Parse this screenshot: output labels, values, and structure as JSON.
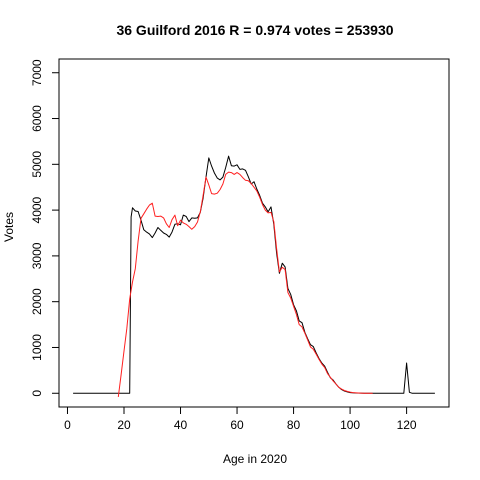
{
  "chart_data": {
    "type": "line",
    "title": "36 Guilford 2016 R = 0.974 votes = 253930",
    "xlabel": "Age in 2020",
    "ylabel": "Votes",
    "xlim": [
      -3,
      135
    ],
    "ylim": [
      -300,
      7300
    ],
    "x_ticks": [
      0,
      20,
      40,
      60,
      80,
      100,
      120
    ],
    "y_ticks": [
      0,
      1000,
      2000,
      3000,
      4000,
      5000,
      6000,
      7000
    ],
    "grid": false,
    "series": [
      {
        "color": "#000000",
        "points": [
          [
            2,
            0
          ],
          [
            10,
            0
          ],
          [
            18,
            0
          ],
          [
            20,
            0
          ],
          [
            22,
            0
          ],
          [
            22.5,
            3850
          ],
          [
            23,
            4050
          ],
          [
            24,
            3980
          ],
          [
            25,
            3970
          ],
          [
            26,
            3780
          ],
          [
            27,
            3570
          ],
          [
            28,
            3520
          ],
          [
            29,
            3480
          ],
          [
            30,
            3400
          ],
          [
            31,
            3500
          ],
          [
            32,
            3620
          ],
          [
            33,
            3560
          ],
          [
            34,
            3500
          ],
          [
            35,
            3470
          ],
          [
            36,
            3410
          ],
          [
            37,
            3520
          ],
          [
            38,
            3690
          ],
          [
            39,
            3700
          ],
          [
            40,
            3680
          ],
          [
            41,
            3890
          ],
          [
            42,
            3860
          ],
          [
            43,
            3750
          ],
          [
            44,
            3830
          ],
          [
            45,
            3820
          ],
          [
            46,
            3830
          ],
          [
            47,
            3950
          ],
          [
            48,
            4260
          ],
          [
            49,
            4720
          ],
          [
            50,
            5140
          ],
          [
            51,
            4960
          ],
          [
            52,
            4810
          ],
          [
            53,
            4700
          ],
          [
            54,
            4660
          ],
          [
            55,
            4720
          ],
          [
            56,
            4930
          ],
          [
            57,
            5180
          ],
          [
            58,
            4970
          ],
          [
            59,
            4960
          ],
          [
            60,
            4990
          ],
          [
            61,
            4890
          ],
          [
            62,
            4900
          ],
          [
            63,
            4870
          ],
          [
            64,
            4730
          ],
          [
            65,
            4570
          ],
          [
            66,
            4620
          ],
          [
            67,
            4460
          ],
          [
            68,
            4320
          ],
          [
            69,
            4150
          ],
          [
            70,
            4070
          ],
          [
            71,
            3960
          ],
          [
            72,
            4070
          ],
          [
            73,
            3690
          ],
          [
            74,
            3060
          ],
          [
            75,
            2620
          ],
          [
            76,
            2840
          ],
          [
            77,
            2760
          ],
          [
            78,
            2290
          ],
          [
            79,
            2160
          ],
          [
            80,
            1930
          ],
          [
            81,
            1800
          ],
          [
            82,
            1580
          ],
          [
            83,
            1540
          ],
          [
            84,
            1330
          ],
          [
            85,
            1190
          ],
          [
            86,
            1060
          ],
          [
            87,
            1020
          ],
          [
            88,
            880
          ],
          [
            89,
            760
          ],
          [
            90,
            660
          ],
          [
            91,
            590
          ],
          [
            92,
            460
          ],
          [
            93,
            340
          ],
          [
            94,
            290
          ],
          [
            95,
            200
          ],
          [
            96,
            130
          ],
          [
            97,
            80
          ],
          [
            98,
            50
          ],
          [
            99,
            30
          ],
          [
            100,
            15
          ],
          [
            102,
            5
          ],
          [
            105,
            0
          ],
          [
            110,
            0
          ],
          [
            115,
            0
          ],
          [
            119,
            0
          ],
          [
            120,
            660
          ],
          [
            121,
            20
          ],
          [
            122,
            0
          ],
          [
            130,
            0
          ]
        ]
      },
      {
        "color": "#ff2020",
        "points": [
          [
            18,
            -80
          ],
          [
            19,
            420
          ],
          [
            20,
            920
          ],
          [
            21,
            1410
          ],
          [
            22,
            2060
          ],
          [
            23,
            2430
          ],
          [
            24,
            2720
          ],
          [
            25,
            3320
          ],
          [
            26,
            3820
          ],
          [
            27,
            3920
          ],
          [
            28,
            4020
          ],
          [
            29,
            4110
          ],
          [
            30,
            4150
          ],
          [
            31,
            3870
          ],
          [
            32,
            3860
          ],
          [
            33,
            3870
          ],
          [
            34,
            3830
          ],
          [
            35,
            3700
          ],
          [
            36,
            3620
          ],
          [
            37,
            3790
          ],
          [
            38,
            3890
          ],
          [
            39,
            3660
          ],
          [
            40,
            3780
          ],
          [
            41,
            3720
          ],
          [
            42,
            3690
          ],
          [
            43,
            3640
          ],
          [
            44,
            3580
          ],
          [
            45,
            3640
          ],
          [
            46,
            3740
          ],
          [
            47,
            3960
          ],
          [
            48,
            4320
          ],
          [
            49,
            4720
          ],
          [
            50,
            4550
          ],
          [
            51,
            4360
          ],
          [
            52,
            4350
          ],
          [
            53,
            4370
          ],
          [
            54,
            4450
          ],
          [
            55,
            4570
          ],
          [
            56,
            4780
          ],
          [
            57,
            4830
          ],
          [
            58,
            4820
          ],
          [
            59,
            4780
          ],
          [
            60,
            4820
          ],
          [
            61,
            4780
          ],
          [
            62,
            4710
          ],
          [
            63,
            4650
          ],
          [
            64,
            4640
          ],
          [
            65,
            4580
          ],
          [
            66,
            4500
          ],
          [
            67,
            4420
          ],
          [
            68,
            4280
          ],
          [
            69,
            4120
          ],
          [
            70,
            4000
          ],
          [
            71,
            3940
          ],
          [
            72,
            3950
          ],
          [
            73,
            3750
          ],
          [
            74,
            3160
          ],
          [
            75,
            2650
          ],
          [
            76,
            2750
          ],
          [
            77,
            2700
          ],
          [
            78,
            2200
          ],
          [
            79,
            2080
          ],
          [
            80,
            1900
          ],
          [
            81,
            1720
          ],
          [
            82,
            1500
          ],
          [
            83,
            1450
          ],
          [
            84,
            1310
          ],
          [
            85,
            1160
          ],
          [
            86,
            1010
          ],
          [
            87,
            960
          ],
          [
            88,
            850
          ],
          [
            89,
            740
          ],
          [
            90,
            640
          ],
          [
            91,
            560
          ],
          [
            92,
            430
          ],
          [
            93,
            350
          ],
          [
            94,
            270
          ],
          [
            95,
            200
          ],
          [
            96,
            130
          ],
          [
            97,
            90
          ],
          [
            98,
            60
          ],
          [
            99,
            40
          ],
          [
            100,
            25
          ],
          [
            101,
            15
          ],
          [
            103,
            5
          ],
          [
            105,
            0
          ],
          [
            108,
            0
          ]
        ]
      }
    ]
  }
}
